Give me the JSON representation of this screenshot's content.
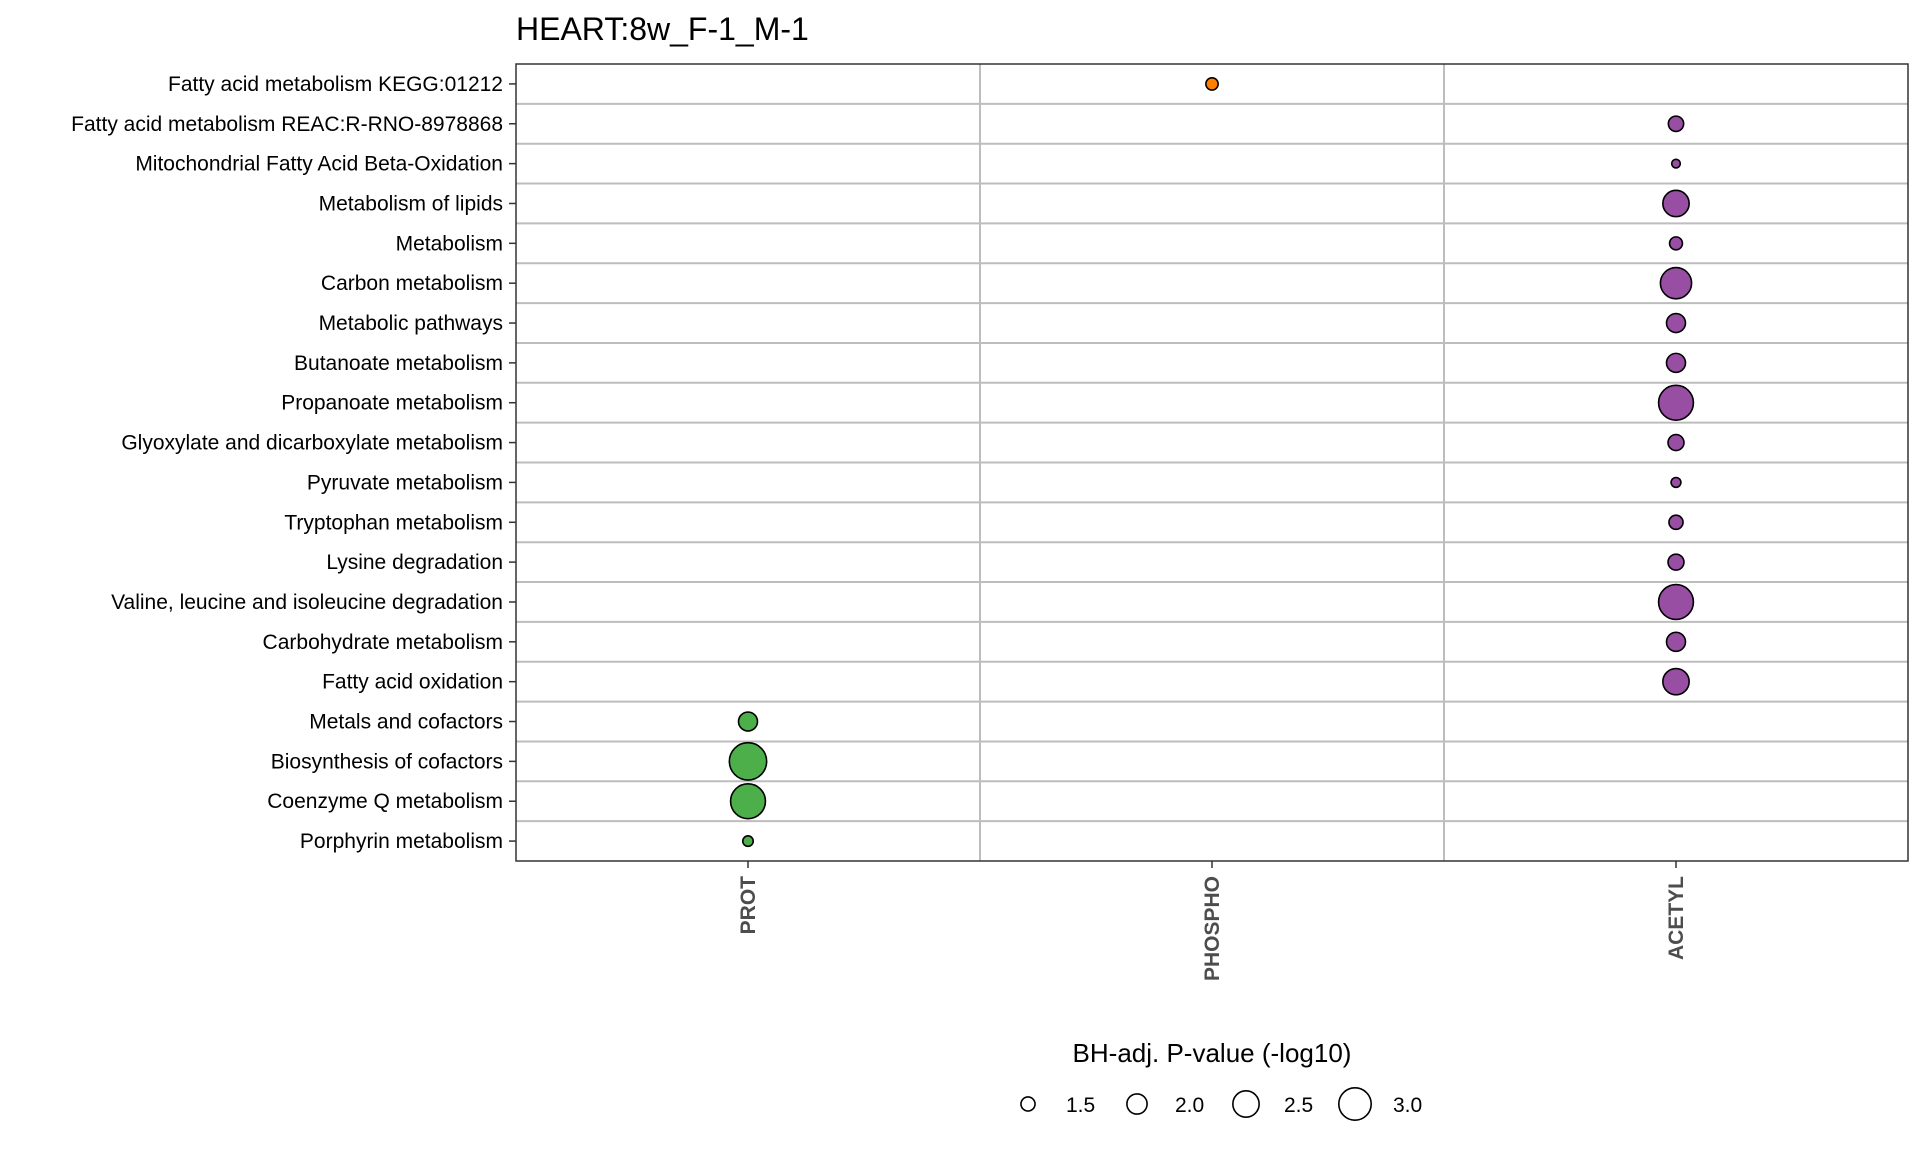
{
  "chart_data": {
    "type": "scatter",
    "title": "HEART:8w_F-1_M-1",
    "xlabel": "",
    "ylabel": "",
    "x_categories": [
      "PROT",
      "PHOSPHO",
      "ACETYL"
    ],
    "y_categories": [
      "Fatty acid metabolism KEGG:01212",
      "Fatty acid metabolism REAC:R-RNO-8978868",
      "Mitochondrial Fatty Acid Beta-Oxidation",
      "Metabolism of lipids",
      "Metabolism",
      "Carbon metabolism",
      "Metabolic pathways",
      "Butanoate metabolism",
      "Propanoate metabolism",
      "Glyoxylate and dicarboxylate metabolism",
      "Pyruvate metabolism",
      "Tryptophan metabolism",
      "Lysine degradation",
      "Valine, leucine and isoleucine degradation",
      "Carbohydrate metabolism",
      "Fatty acid oxidation",
      "Metals and cofactors",
      "Biosynthesis of cofactors",
      "Coenzyme Q metabolism",
      "Porphyrin metabolism"
    ],
    "colors": {
      "PROT": "#4daf4a",
      "PHOSPHO": "#ff7f00",
      "ACETYL": "#984ea3"
    },
    "points": [
      {
        "pathway": "Fatty acid metabolism KEGG:01212",
        "ome": "PHOSPHO",
        "neg_log10_p": 1.35
      },
      {
        "pathway": "Fatty acid metabolism REAC:R-RNO-8978868",
        "ome": "ACETYL",
        "neg_log10_p": 1.6
      },
      {
        "pathway": "Mitochondrial Fatty Acid Beta-Oxidation",
        "ome": "ACETYL",
        "neg_log10_p": 1.05
      },
      {
        "pathway": "Metabolism of lipids",
        "ome": "ACETYL",
        "neg_log10_p": 2.5
      },
      {
        "pathway": "Metabolism",
        "ome": "ACETYL",
        "neg_log10_p": 1.4
      },
      {
        "pathway": "Carbon metabolism",
        "ome": "ACETYL",
        "neg_log10_p": 2.9
      },
      {
        "pathway": "Metabolic pathways",
        "ome": "ACETYL",
        "neg_log10_p": 1.9
      },
      {
        "pathway": "Butanoate metabolism",
        "ome": "ACETYL",
        "neg_log10_p": 1.9
      },
      {
        "pathway": "Propanoate metabolism",
        "ome": "ACETYL",
        "neg_log10_p": 3.2
      },
      {
        "pathway": "Glyoxylate and dicarboxylate metabolism",
        "ome": "ACETYL",
        "neg_log10_p": 1.65
      },
      {
        "pathway": "Pyruvate metabolism",
        "ome": "ACETYL",
        "neg_log10_p": 1.15
      },
      {
        "pathway": "Tryptophan metabolism",
        "ome": "ACETYL",
        "neg_log10_p": 1.5
      },
      {
        "pathway": "Lysine degradation",
        "ome": "ACETYL",
        "neg_log10_p": 1.65
      },
      {
        "pathway": "Valine, leucine and isoleucine degradation",
        "ome": "ACETYL",
        "neg_log10_p": 3.2
      },
      {
        "pathway": "Carbohydrate metabolism",
        "ome": "ACETYL",
        "neg_log10_p": 1.9
      },
      {
        "pathway": "Fatty acid oxidation",
        "ome": "ACETYL",
        "neg_log10_p": 2.5
      },
      {
        "pathway": "Metals and cofactors",
        "ome": "PROT",
        "neg_log10_p": 1.9
      },
      {
        "pathway": "Biosynthesis of cofactors",
        "ome": "PROT",
        "neg_log10_p": 3.4
      },
      {
        "pathway": "Coenzyme Q metabolism",
        "ome": "PROT",
        "neg_log10_p": 3.2
      },
      {
        "pathway": "Porphyrin metabolism",
        "ome": "PROT",
        "neg_log10_p": 1.2
      }
    ],
    "legend": {
      "title": "BH-adj. P-value (-log10)",
      "placement": "bottom",
      "breaks": [
        1.5,
        2.0,
        2.5,
        3.0
      ],
      "labels": [
        "1.5",
        "2.0",
        "2.5",
        "3.0"
      ]
    },
    "grid": true
  }
}
